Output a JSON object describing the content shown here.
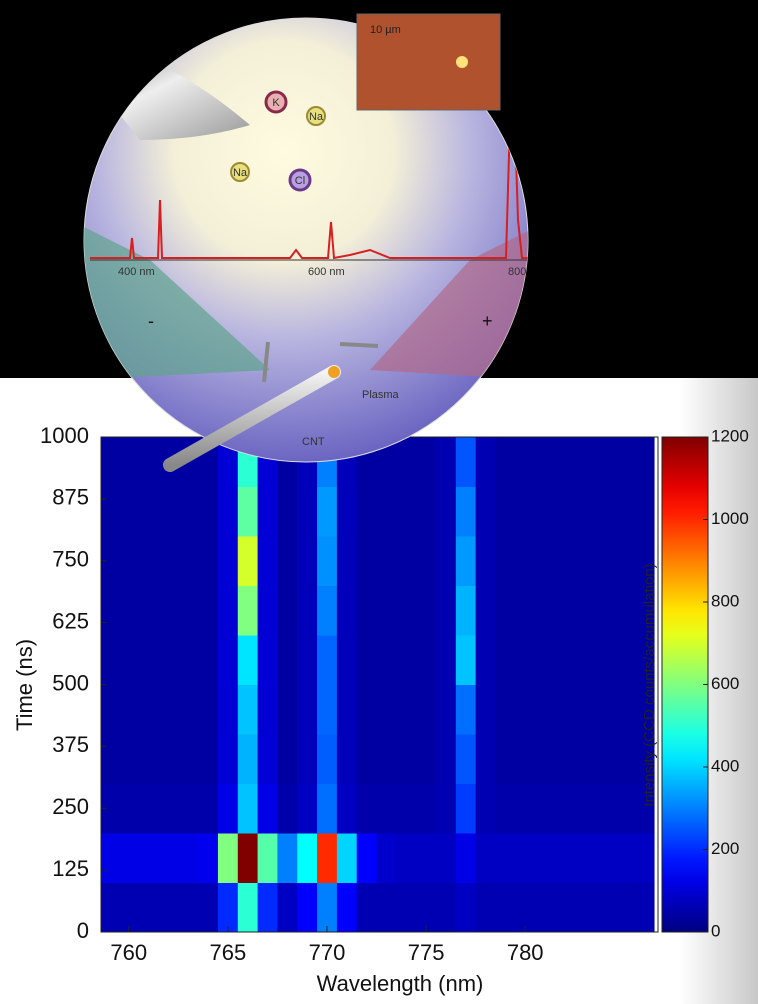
{
  "illustration": {
    "scale_bar": "10 µm",
    "ions": [
      "K",
      "Na",
      "Na",
      "Cl"
    ],
    "spectrum_labels": [
      "400 nm",
      "600 nm",
      "800"
    ],
    "electrode_minus": "-",
    "electrode_plus": "+",
    "plasma": "Plasma",
    "cnt": "CNT"
  },
  "chart_data": {
    "type": "heatmap",
    "xlabel": "Wavelength (nm)",
    "ylabel": "Time (ns)",
    "colorbar_label": "Intensity (CCD counts/accumulation)",
    "x": [
      759,
      760,
      761,
      762,
      763,
      764,
      765,
      766,
      767,
      768,
      769,
      770,
      771,
      772,
      773,
      774,
      775,
      776,
      777,
      778,
      779,
      780,
      781,
      782,
      783,
      784,
      785,
      786
    ],
    "y": [
      50,
      150,
      250,
      350,
      450,
      550,
      650,
      750,
      850,
      950
    ],
    "z": [
      [
        60,
        60,
        60,
        60,
        60,
        60,
        200,
        500,
        200,
        80,
        150,
        300,
        150,
        60,
        60,
        60,
        60,
        60,
        80,
        60,
        60,
        60,
        60,
        60,
        60,
        60,
        60,
        60
      ],
      [
        120,
        120,
        120,
        120,
        120,
        130,
        600,
        1200,
        550,
        300,
        450,
        1000,
        400,
        150,
        90,
        80,
        80,
        80,
        120,
        80,
        80,
        80,
        80,
        80,
        80,
        80,
        80,
        80
      ],
      [
        50,
        50,
        50,
        50,
        50,
        50,
        120,
        380,
        120,
        50,
        80,
        280,
        80,
        50,
        50,
        50,
        50,
        60,
        220,
        60,
        50,
        50,
        50,
        50,
        50,
        50,
        50,
        50
      ],
      [
        40,
        40,
        40,
        40,
        40,
        40,
        100,
        360,
        100,
        40,
        70,
        260,
        70,
        40,
        40,
        40,
        40,
        60,
        250,
        60,
        40,
        40,
        40,
        40,
        40,
        40,
        40,
        40
      ],
      [
        40,
        40,
        40,
        40,
        40,
        40,
        100,
        380,
        100,
        40,
        70,
        270,
        70,
        40,
        40,
        40,
        40,
        60,
        280,
        60,
        40,
        40,
        40,
        40,
        40,
        40,
        40,
        40
      ],
      [
        40,
        40,
        40,
        40,
        40,
        40,
        100,
        420,
        100,
        40,
        70,
        270,
        70,
        40,
        40,
        40,
        40,
        60,
        380,
        60,
        40,
        40,
        40,
        40,
        40,
        40,
        40,
        40
      ],
      [
        40,
        40,
        40,
        40,
        40,
        40,
        100,
        600,
        100,
        40,
        70,
        300,
        70,
        40,
        40,
        40,
        40,
        60,
        360,
        60,
        40,
        40,
        40,
        40,
        40,
        40,
        40,
        40
      ],
      [
        40,
        40,
        40,
        40,
        40,
        40,
        100,
        700,
        100,
        40,
        70,
        320,
        70,
        40,
        40,
        40,
        40,
        60,
        330,
        60,
        40,
        40,
        40,
        40,
        40,
        40,
        40,
        40
      ],
      [
        40,
        40,
        40,
        40,
        40,
        40,
        100,
        560,
        100,
        40,
        70,
        330,
        70,
        40,
        40,
        40,
        40,
        60,
        300,
        60,
        40,
        40,
        40,
        40,
        40,
        40,
        40,
        40
      ],
      [
        40,
        40,
        40,
        40,
        40,
        40,
        100,
        500,
        100,
        40,
        70,
        300,
        70,
        40,
        40,
        40,
        40,
        60,
        250,
        60,
        40,
        40,
        40,
        40,
        40,
        40,
        40,
        40
      ]
    ],
    "xlim": [
      758.6,
      786.7
    ],
    "ylim": [
      0,
      1000
    ],
    "zlim": [
      0,
      1200
    ],
    "xticks": [
      760,
      765,
      770,
      775,
      780
    ],
    "yticks": [
      0,
      125,
      250,
      375,
      500,
      625,
      750,
      875,
      1000
    ],
    "zticks": [
      0,
      200,
      400,
      600,
      800,
      1000,
      1200
    ],
    "colormap": "jet"
  }
}
